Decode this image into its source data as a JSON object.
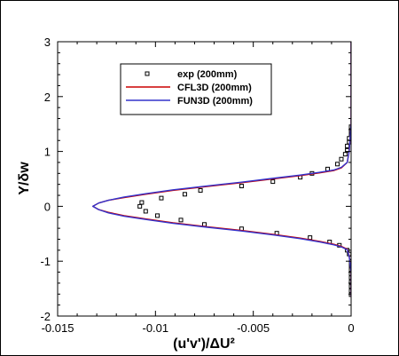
{
  "chart_data": {
    "type": "line",
    "xlabel": "(u'v')/ΔU²",
    "ylabel": "Y/δw",
    "xlim": [
      -0.015,
      0
    ],
    "ylim": [
      -2,
      3
    ],
    "xticks": [
      -0.015,
      -0.01,
      -0.005,
      0
    ],
    "xtick_labels": [
      "-0.015",
      "-0.01",
      "-0.005",
      "0"
    ],
    "yticks": [
      -2,
      -1,
      0,
      1,
      2,
      3
    ],
    "ytick_labels": [
      "-2",
      "-1",
      "0",
      "1",
      "2",
      "3"
    ],
    "grid": false,
    "legend_position": "top-center",
    "series": [
      {
        "name": "exp (200mm)",
        "kind": "scatter",
        "color": "#000000",
        "marker": "open-square",
        "points": [
          [
            0,
            1.45
          ],
          [
            0,
            1.38
          ],
          [
            0,
            1.31
          ],
          [
            -0.0001,
            1.24
          ],
          [
            -0.0001,
            1.17
          ],
          [
            -0.0002,
            1.1
          ],
          [
            -0.0002,
            1.02
          ],
          [
            -0.0003,
            0.95
          ],
          [
            -0.0005,
            0.86
          ],
          [
            -0.0007,
            0.77
          ],
          [
            -0.0012,
            0.68
          ],
          [
            -0.002,
            0.6
          ],
          [
            -0.0026,
            0.53
          ],
          [
            -0.004,
            0.45
          ],
          [
            -0.0056,
            0.37
          ],
          [
            -0.0077,
            0.29
          ],
          [
            -0.0085,
            0.22
          ],
          [
            -0.0097,
            0.15
          ],
          [
            -0.0107,
            0.07
          ],
          [
            -0.0108,
            0.0
          ],
          [
            -0.0105,
            -0.09
          ],
          [
            -0.0099,
            -0.17
          ],
          [
            -0.0087,
            -0.25
          ],
          [
            -0.0075,
            -0.33
          ],
          [
            -0.0056,
            -0.41
          ],
          [
            -0.0038,
            -0.49
          ],
          [
            -0.0021,
            -0.57
          ],
          [
            -0.0011,
            -0.65
          ],
          [
            -0.0006,
            -0.71
          ],
          [
            -0.0002,
            -0.8
          ],
          [
            -0.0001,
            -0.87
          ],
          [
            0,
            -0.94
          ],
          [
            0,
            -1.0
          ],
          [
            0,
            -1.08
          ],
          [
            0,
            -1.15
          ],
          [
            0,
            -1.23
          ],
          [
            0,
            -1.3
          ],
          [
            0,
            -1.38
          ],
          [
            0,
            -1.46
          ],
          [
            0,
            -1.54
          ],
          [
            0,
            -1.61
          ]
        ]
      },
      {
        "name": "CFL3D (200mm)",
        "kind": "line",
        "color": "#cc0000",
        "points": [
          [
            0,
            3.0
          ],
          [
            0,
            1.5
          ],
          [
            -0.0001,
            1.0
          ],
          [
            -0.0002,
            0.8
          ],
          [
            -0.0005,
            0.7
          ],
          [
            -0.0009,
            0.65
          ],
          [
            -0.0016,
            0.61
          ],
          [
            -0.0026,
            0.56
          ],
          [
            -0.004,
            0.5
          ],
          [
            -0.0056,
            0.43
          ],
          [
            -0.0074,
            0.36
          ],
          [
            -0.0091,
            0.29
          ],
          [
            -0.0105,
            0.22
          ],
          [
            -0.0116,
            0.16
          ],
          [
            -0.0124,
            0.11
          ],
          [
            -0.0129,
            0.06
          ],
          [
            -0.0132,
            0.0
          ],
          [
            -0.0129,
            -0.06
          ],
          [
            -0.0124,
            -0.11
          ],
          [
            -0.0116,
            -0.17
          ],
          [
            -0.0105,
            -0.23
          ],
          [
            -0.0091,
            -0.3
          ],
          [
            -0.0074,
            -0.37
          ],
          [
            -0.0056,
            -0.44
          ],
          [
            -0.004,
            -0.51
          ],
          [
            -0.0026,
            -0.58
          ],
          [
            -0.0016,
            -0.64
          ],
          [
            -0.0009,
            -0.69
          ],
          [
            -0.0005,
            -0.73
          ],
          [
            -0.0002,
            -0.78
          ],
          [
            -0.0001,
            -0.9
          ],
          [
            0,
            -1.2
          ],
          [
            0,
            -1.65
          ]
        ]
      },
      {
        "name": "FUN3D (200mm)",
        "kind": "line",
        "color": "#3333cc",
        "points": [
          [
            0,
            3.0
          ],
          [
            0,
            1.5
          ],
          [
            -0.0001,
            1.0
          ],
          [
            -0.0002,
            0.8
          ],
          [
            -0.0005,
            0.71
          ],
          [
            -0.0009,
            0.66
          ],
          [
            -0.0016,
            0.62
          ],
          [
            -0.0026,
            0.57
          ],
          [
            -0.004,
            0.51
          ],
          [
            -0.0056,
            0.44
          ],
          [
            -0.0074,
            0.37
          ],
          [
            -0.0091,
            0.3
          ],
          [
            -0.0105,
            0.23
          ],
          [
            -0.0116,
            0.17
          ],
          [
            -0.0124,
            0.11
          ],
          [
            -0.0129,
            0.06
          ],
          [
            -0.0132,
            0.0
          ],
          [
            -0.0129,
            -0.06
          ],
          [
            -0.0124,
            -0.12
          ],
          [
            -0.0116,
            -0.18
          ],
          [
            -0.0105,
            -0.24
          ],
          [
            -0.0091,
            -0.31
          ],
          [
            -0.0074,
            -0.38
          ],
          [
            -0.0056,
            -0.45
          ],
          [
            -0.004,
            -0.52
          ],
          [
            -0.0026,
            -0.59
          ],
          [
            -0.0016,
            -0.65
          ],
          [
            -0.0009,
            -0.7
          ],
          [
            -0.0005,
            -0.74
          ],
          [
            -0.0002,
            -0.79
          ],
          [
            -0.0001,
            -0.91
          ],
          [
            0,
            -1.2
          ],
          [
            0,
            -1.65
          ]
        ]
      }
    ]
  }
}
